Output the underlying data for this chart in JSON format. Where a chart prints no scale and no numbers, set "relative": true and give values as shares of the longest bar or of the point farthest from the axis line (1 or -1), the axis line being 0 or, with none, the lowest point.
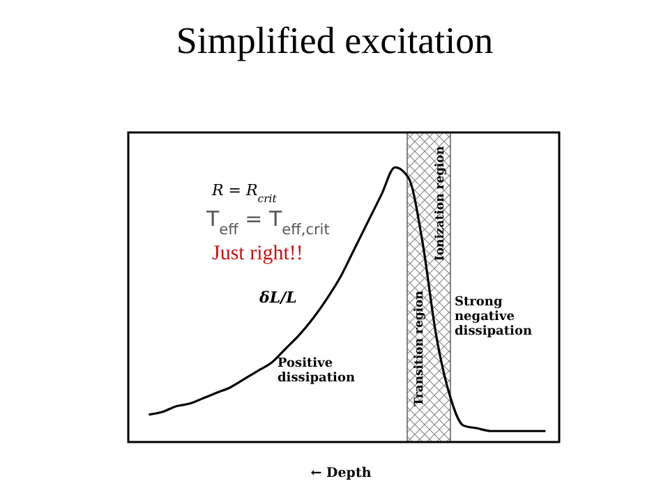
{
  "chart_data": {
    "type": "line",
    "title": "Simplified excitation",
    "xlabel": "← Depth",
    "relative": true,
    "categories": [
      null,
      null,
      null,
      null,
      null,
      null,
      null,
      null,
      null,
      null,
      null,
      null,
      null,
      null,
      null,
      null,
      null,
      null,
      null,
      null,
      null,
      null,
      null,
      null,
      null,
      null,
      null,
      null,
      null,
      null
    ],
    "series": [
      {
        "color": "#000000",
        "values": [
          0.1,
          0.11,
          0.13,
          0.14,
          0.16,
          0.18,
          0.2,
          0.23,
          0.26,
          0.29,
          0.34,
          0.39,
          0.45,
          0.52,
          0.6,
          0.7,
          0.8,
          0.9,
          1.0,
          0.96,
          0.73,
          0.39,
          0.17,
          0.06,
          0.05,
          0.04,
          0.04,
          0.04,
          0.04,
          0.04
        ]
      }
    ],
    "annotations": [
      "R = R$_{crit}$",
      "T$_{eff}$ = T$_{eff,crit}$",
      "Just right!!",
      "δL/L",
      "Positive dissipation",
      "Strong negative dissipation",
      "Transition region",
      "Ionization region"
    ],
    "line_style": "solid"
  }
}
